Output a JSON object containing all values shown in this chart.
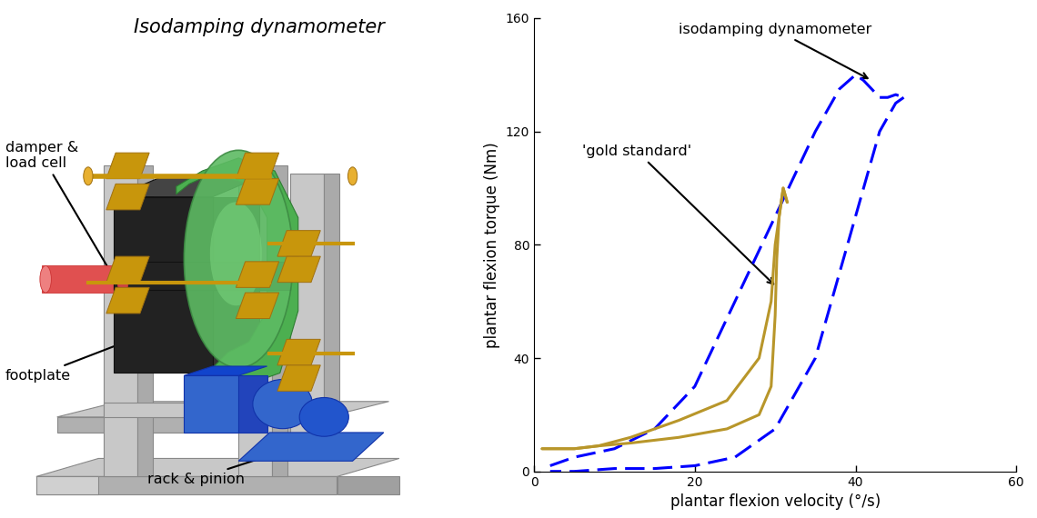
{
  "title_left": "Isodamping dynamometer",
  "xlabel": "plantar flexion velocity (°/s)",
  "ylabel": "plantar flexion torque (Nm)",
  "xlim": [
    0,
    60
  ],
  "ylim": [
    0,
    160
  ],
  "xticks": [
    0,
    20,
    40,
    60
  ],
  "yticks": [
    0,
    40,
    80,
    120,
    160
  ],
  "gold_color": "#B8962A",
  "iso_color": "#0000FF",
  "gold_x_up": [
    1,
    2,
    3,
    5,
    8,
    12,
    18,
    24,
    28,
    29.5,
    30,
    30.2,
    30.5,
    31,
    31.5
  ],
  "gold_y_up": [
    8,
    8,
    8,
    8,
    9,
    10,
    12,
    15,
    20,
    30,
    55,
    75,
    90,
    100,
    95
  ],
  "gold_x_down": [
    31.5,
    31,
    30.5,
    30,
    29.5,
    28,
    24,
    18,
    12,
    8,
    5,
    3,
    2,
    1
  ],
  "gold_y_down": [
    95,
    100,
    90,
    80,
    60,
    40,
    25,
    18,
    12,
    9,
    8,
    8,
    8,
    8
  ],
  "iso_x_up": [
    2,
    5,
    10,
    15,
    20,
    25,
    30,
    35,
    38,
    40,
    41,
    42,
    43,
    44,
    45,
    46
  ],
  "iso_y_up": [
    2,
    5,
    8,
    15,
    30,
    60,
    90,
    120,
    135,
    140,
    138,
    135,
    132,
    132,
    133,
    132
  ],
  "iso_x_down": [
    46,
    45,
    44,
    43,
    42,
    40,
    38,
    35,
    30,
    25,
    20,
    15,
    10,
    5,
    2
  ],
  "iso_y_down": [
    132,
    130,
    125,
    120,
    110,
    90,
    70,
    40,
    15,
    5,
    2,
    1,
    1,
    0,
    0
  ],
  "frame_color": "#C8C8C8",
  "frame_edge": "#888888",
  "gold_part_color": "#C8960C",
  "blue_color": "#3366CC",
  "black_color": "#222222",
  "red_color": "#E05050",
  "green_color": "#5DBB63"
}
